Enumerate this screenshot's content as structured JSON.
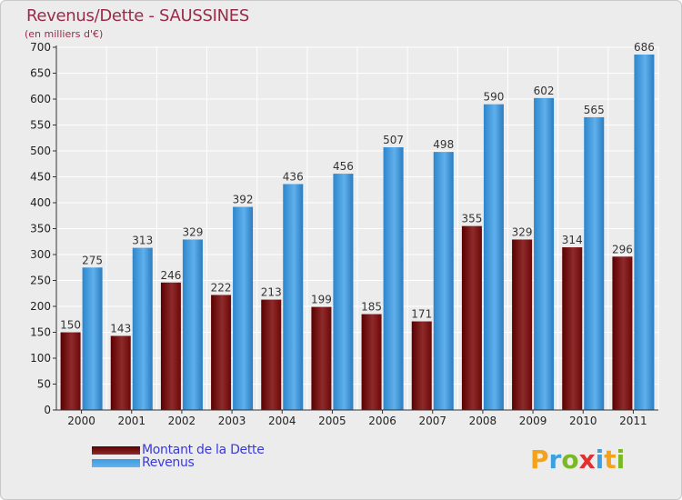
{
  "header": {
    "title": "Revenus/Dette - SAUSSINES",
    "subtitle": "(en milliers d'€)"
  },
  "legend": {
    "debt_label": "Montant de la Dette",
    "revenue_label": "Revenus"
  },
  "logo": {
    "text": "Proxiti",
    "letters": [
      "P",
      "r",
      "o",
      "x",
      "i",
      "t",
      "i"
    ],
    "colors": [
      "#f3a21a",
      "#3aa0e0",
      "#7ab825",
      "#e03030",
      "#3aa0e0",
      "#f3a21a",
      "#7ab825"
    ]
  },
  "colors": {
    "debt": "#7a1010",
    "revenue": "#3f9be0",
    "grid": "#ffffff",
    "axis": "#333333"
  },
  "chart_data": {
    "type": "bar",
    "title": "Revenus/Dette - SAUSSINES",
    "subtitle": "(en milliers d'€)",
    "categories": [
      "2000",
      "2001",
      "2002",
      "2003",
      "2004",
      "2005",
      "2006",
      "2007",
      "2008",
      "2009",
      "2010",
      "2011"
    ],
    "series": [
      {
        "name": "Montant de la Dette",
        "values": [
          150,
          143,
          246,
          222,
          213,
          199,
          185,
          171,
          355,
          329,
          314,
          296
        ]
      },
      {
        "name": "Revenus",
        "values": [
          275,
          313,
          329,
          392,
          436,
          456,
          507,
          498,
          590,
          602,
          565,
          686
        ]
      }
    ],
    "ylim": [
      0,
      700
    ],
    "yticks": [
      0,
      50,
      100,
      150,
      200,
      250,
      300,
      350,
      400,
      450,
      500,
      550,
      600,
      650,
      700
    ],
    "grid": true,
    "legend_position": "bottom-left"
  }
}
